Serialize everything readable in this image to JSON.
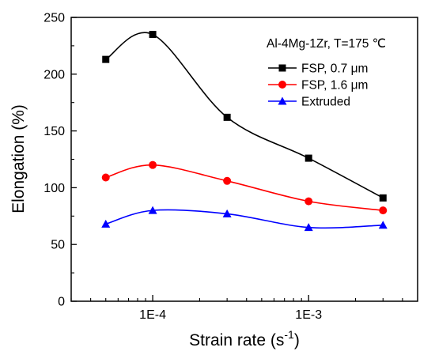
{
  "chart_data": {
    "type": "line",
    "title": "",
    "xlabel": "Strain rate (s",
    "xlabel_sup": "-1",
    "xlabel_suffix": ")",
    "ylabel": "Elongation (%)",
    "x_scale": "log",
    "xlim": [
      3e-05,
      0.005
    ],
    "ylim": [
      0,
      250
    ],
    "yticks": [
      0,
      50,
      100,
      150,
      200,
      250
    ],
    "xticks": [
      {
        "value": 0.0001,
        "label": "1E-4"
      },
      {
        "value": 0.001,
        "label": "1E-3"
      }
    ],
    "grid": false,
    "legend_title": "Al-4Mg-1Zr, T=175 ℃",
    "legend_position": "top-right",
    "x": [
      5e-05,
      0.0001,
      0.0003,
      0.001,
      0.003
    ],
    "series": [
      {
        "name": "FSP, 0.7 μm",
        "color": "#000000",
        "marker": "square",
        "values": [
          213,
          235,
          162,
          126,
          91
        ]
      },
      {
        "name": "FSP, 1.6 μm",
        "color": "#ff0000",
        "marker": "circle",
        "values": [
          109,
          120,
          106,
          88,
          80
        ]
      },
      {
        "name": "Extruded",
        "color": "#0000ff",
        "marker": "triangle",
        "values": [
          68,
          80,
          77,
          65,
          67
        ]
      }
    ]
  }
}
